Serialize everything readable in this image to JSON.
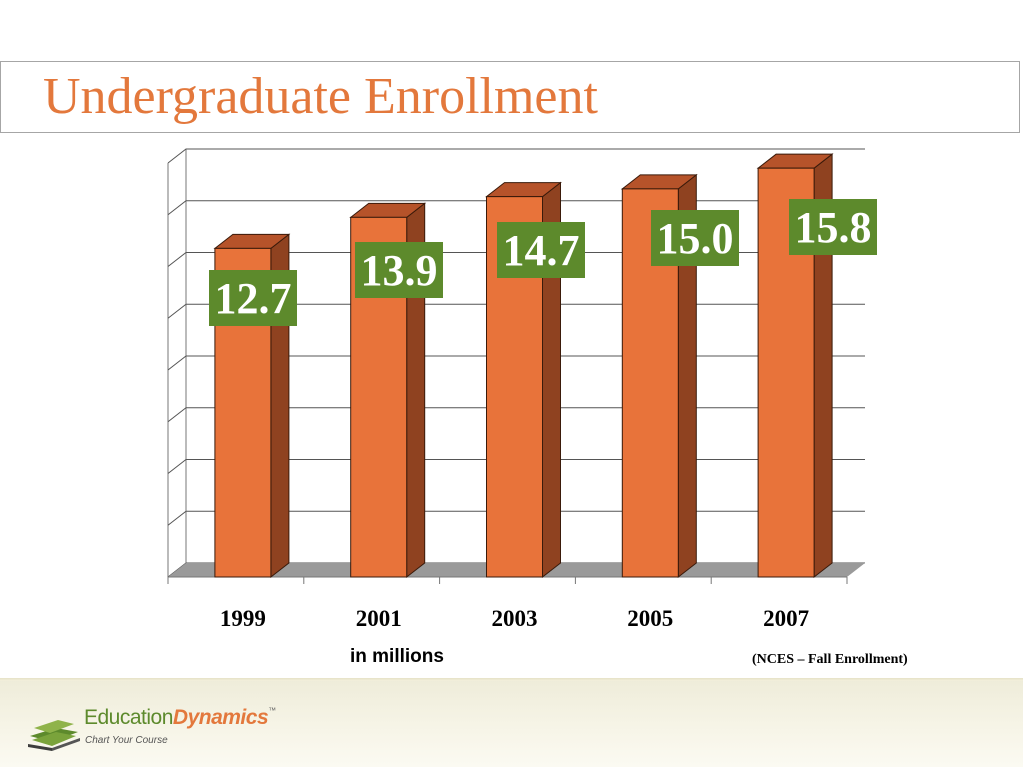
{
  "slide": {
    "title": "Undergraduate Enrollment",
    "units_note": "in millions",
    "source_note": "(NCES – Fall Enrollment)"
  },
  "footer": {
    "brand_part1": "Education",
    "brand_part2": "Dynamics",
    "trademark": "™",
    "tagline": "Chart Your Course"
  },
  "colors": {
    "title": "#e3783c",
    "bar_front": "#e8733a",
    "bar_side": "#8f4220",
    "bar_top": "#b6532a",
    "label_box": "#5d8a2c",
    "floor": "#9a9a9a"
  },
  "chart_data": {
    "type": "bar",
    "categories": [
      "1999",
      "2001",
      "2003",
      "2005",
      "2007"
    ],
    "values": [
      12.7,
      13.9,
      14.7,
      15.0,
      15.8
    ],
    "data_labels": [
      "12.7",
      "13.9",
      "14.7",
      "15.0",
      "15.8"
    ],
    "ylim": [
      0,
      16
    ],
    "grid": true,
    "style": "3d-column",
    "legend": "none"
  }
}
